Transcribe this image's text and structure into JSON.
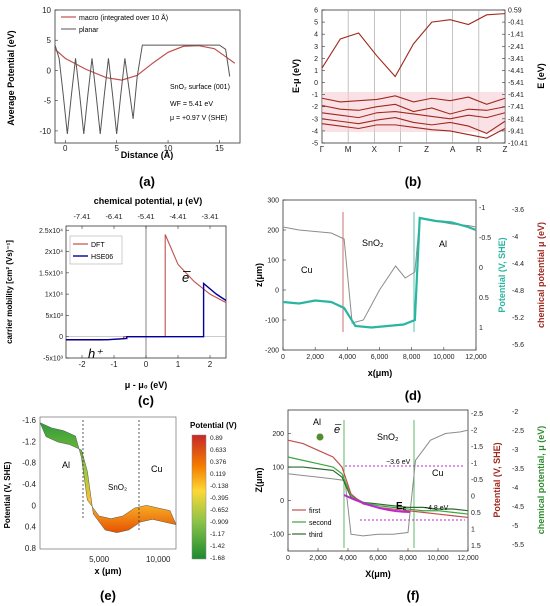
{
  "panels": [
    {
      "id": "a",
      "label": "(a)"
    },
    {
      "id": "b",
      "label": "(b)"
    },
    {
      "id": "c",
      "label": "(c)"
    },
    {
      "id": "d",
      "label": "(d)"
    },
    {
      "id": "e",
      "label": "(e)"
    },
    {
      "id": "f",
      "label": "(f)"
    }
  ],
  "chart_data": [
    {
      "panel": "a",
      "type": "line",
      "xlabel": "Distance (Å)",
      "ylabel": "Average Potential (eV)",
      "xlim": [
        -1,
        17
      ],
      "ylim": [
        -12,
        10
      ],
      "x_ticks": [
        0,
        5,
        10,
        15
      ],
      "y_ticks": [
        -10,
        -5,
        0,
        5,
        10
      ],
      "legend": [
        "macro (integrated over 10 Å)",
        "planar"
      ],
      "legend_position": "top-left",
      "annotations": [
        "SnO₂ surface (001)",
        "WF = 5.41 eV",
        "μ = +0.97 V (SHE)"
      ],
      "series": [
        {
          "name": "macro (integrated over 10 Å)",
          "color": "#c0504d",
          "x": [
            -1,
            0,
            2,
            4,
            5.5,
            7,
            8.5,
            10,
            11.5,
            13,
            14.5,
            15.5,
            16.5
          ],
          "y": [
            3.5,
            2.0,
            0.2,
            -1.2,
            -1.6,
            -0.8,
            1.2,
            3.0,
            4.0,
            4.1,
            3.6,
            2.4,
            1.2
          ]
        },
        {
          "name": "planar",
          "color": "#555555",
          "x": [
            -1,
            -0.6,
            -0.2,
            0.2,
            0.6,
            1,
            1.4,
            1.8,
            2.2,
            2.6,
            3,
            3.4,
            3.8,
            4.2,
            4.6,
            5,
            5.4,
            5.8,
            6.2,
            6.6,
            7,
            7.5,
            8,
            9,
            10,
            11,
            12,
            13,
            14,
            15,
            15.6,
            16
          ],
          "y": [
            4.2,
            2,
            -4,
            -10.5,
            -4,
            2,
            -4,
            -10.5,
            -4,
            2,
            -4,
            -10.5,
            -4,
            2,
            -4,
            -10.5,
            -4,
            2,
            -3,
            -8,
            -1,
            4.2,
            4.2,
            4.2,
            4.2,
            4.2,
            4.2,
            4.2,
            4.2,
            4.2,
            3.5,
            -1
          ]
        }
      ]
    },
    {
      "panel": "b",
      "type": "line",
      "ylabel": "E-μ (eV)",
      "ylabel_right": "E (eV)",
      "ylim": [
        -5,
        6
      ],
      "x_ticks": [
        "Γ",
        "M",
        "X",
        "Γ",
        "Z",
        "A",
        "R",
        "Z"
      ],
      "y_ticks_left": [
        -5,
        -4,
        -3,
        -2,
        -1,
        0,
        1,
        2,
        3,
        4,
        5,
        6
      ],
      "y_ticks_right": [
        0.59,
        -0.41,
        -1.41,
        -2.41,
        -3.41,
        -4.41,
        -5.41,
        -6.41,
        -7.41,
        -8.41,
        -9.41,
        -10.41
      ],
      "series": [
        {
          "name": "conduction",
          "color": "#a0281e",
          "y": [
            1.2,
            3.6,
            4.1,
            2.2,
            0.5,
            3.2,
            5.0,
            5.2,
            4.8,
            5.6,
            5.7
          ]
        },
        {
          "name": "valence 1",
          "color": "#a0281e",
          "y": [
            -1.3,
            -1.6,
            -1.5,
            -1.4,
            -1.1,
            -1.6,
            -1.3,
            -1.5,
            -1.2,
            -1.8,
            -1.3
          ]
        },
        {
          "name": "valence 2",
          "color": "#a0281e",
          "y": [
            -1.9,
            -2.2,
            -2.3,
            -2.0,
            -1.8,
            -2.4,
            -2.1,
            -2.6,
            -2.2,
            -2.3,
            -2.0
          ]
        },
        {
          "name": "valence 3",
          "color": "#a0281e",
          "y": [
            -2.5,
            -2.7,
            -2.9,
            -2.5,
            -2.4,
            -2.6,
            -2.8,
            -3.0,
            -2.7,
            -2.9,
            -2.5
          ]
        },
        {
          "name": "valence 4",
          "color": "#a0281e",
          "y": [
            -3.0,
            -3.2,
            -3.4,
            -3.1,
            -2.9,
            -3.3,
            -3.5,
            -3.3,
            -3.6,
            -4.2,
            -3.2
          ]
        },
        {
          "name": "valence 5",
          "color": "#a0281e",
          "y": [
            -3.4,
            -3.6,
            -3.8,
            -3.5,
            -3.5,
            -3.7,
            -3.9,
            -4.0,
            -4.3,
            -4.6,
            -3.8
          ]
        }
      ]
    },
    {
      "panel": "c",
      "type": "line",
      "title": "chemical potential, μ (eV)",
      "xlabel": "μ - μ₀ (eV)",
      "ylabel": "carrier mobility [cm² (Vs)⁻¹]",
      "xlim": [
        -2.5,
        2.5
      ],
      "ylim": [
        -5000,
        26000
      ],
      "x_ticks": [
        -2,
        -1,
        0,
        1,
        2
      ],
      "x_ticks_top": [
        -7.41,
        -6.41,
        -5.41,
        -4.41,
        -3.41
      ],
      "y_ticks": [
        "-5x10³",
        "0",
        "5x10³",
        "1x10⁴",
        "1.5x10⁴",
        "2x10⁴",
        "2.5x10⁴"
      ],
      "legend": [
        "DFT",
        "HSE06"
      ],
      "annotations": [
        "e̅",
        "h⁺"
      ],
      "series": [
        {
          "name": "DFT",
          "color": "#c0504d",
          "x": [
            -2.5,
            -1.4,
            -0.7,
            -0.7,
            0.6,
            0.6,
            1.0,
            1.5,
            2.0,
            2.5
          ],
          "y": [
            -800,
            -800,
            -500,
            0,
            0,
            24000,
            17000,
            13000,
            10000,
            8000
          ]
        },
        {
          "name": "HSE06",
          "color": "#0000a0",
          "x": [
            -2.5,
            -1.2,
            -0.6,
            -0.6,
            1.8,
            1.8,
            2.2,
            2.5
          ],
          "y": [
            -700,
            -700,
            -400,
            0,
            0,
            12500,
            10000,
            8500
          ]
        }
      ]
    },
    {
      "panel": "d",
      "type": "line",
      "xlabel": "x(μm)",
      "ylabel": "z(μm)",
      "ylabel_right1": "Potential (V, SHE)",
      "ylabel_right2": "chemical potential μ (eV)",
      "xlim": [
        0,
        12000
      ],
      "ylim": [
        -200,
        300
      ],
      "x_ticks": [
        "0",
        "2,000",
        "4,000",
        "6,000",
        "8,000",
        "10,000",
        "12,000"
      ],
      "y_ticks": [
        -200,
        -100,
        0,
        100,
        200,
        300
      ],
      "y_ticks_right1": [
        -1,
        -0.5,
        0,
        0.5,
        1
      ],
      "y_ticks_right2": [
        -3.6,
        -4,
        -4.4,
        -4.8,
        -5.2,
        -5.6
      ],
      "region_labels": [
        "Cu",
        "SnO₂",
        "Al"
      ],
      "series": [
        {
          "name": "potential",
          "color": "#2ab5a0",
          "x": [
            0,
            1000,
            2000,
            3000,
            3800,
            4500,
            5500,
            6500,
            7500,
            8200,
            8500,
            9500,
            10500,
            11500,
            12000
          ],
          "y": [
            -40,
            -45,
            -35,
            -40,
            -60,
            -120,
            -125,
            -120,
            -115,
            -100,
            240,
            230,
            225,
            210,
            200
          ]
        },
        {
          "name": "topography",
          "color": "#8c8c8c",
          "x": [
            0,
            1000,
            2000,
            3000,
            3800,
            4300,
            5000,
            6000,
            7000,
            7600,
            8200,
            8500,
            9500,
            10500,
            11500,
            12000
          ],
          "y": [
            210,
            200,
            195,
            190,
            170,
            -110,
            -100,
            0,
            80,
            40,
            60,
            240,
            230,
            220,
            215,
            210
          ]
        }
      ]
    },
    {
      "panel": "e",
      "type": "area",
      "xlabel": "x (μm)",
      "ylabel": "Potential (V, SHE)",
      "colorbar_title": "Potential (V)",
      "x_ticks": [
        "5,000",
        "10,000"
      ],
      "y_ticks": [
        -1.6,
        -1.2,
        -0.8,
        -0.4,
        0,
        0.4,
        0.8
      ],
      "colorbar_ticks": [
        0.89,
        0.633,
        0.376,
        0.119,
        -0.138,
        -0.395,
        -0.652,
        -0.909,
        -1.17,
        -1.42,
        -1.68
      ],
      "region_labels": [
        "Al",
        "SnO₂",
        "Cu"
      ],
      "x": [
        0,
        1000,
        2000,
        3000,
        3500,
        4000,
        5000,
        6000,
        7000,
        8000,
        9000,
        10000,
        11000
      ],
      "y": [
        -1.55,
        -1.45,
        -1.4,
        -1.3,
        -0.9,
        -0.1,
        0.2,
        0.25,
        0.2,
        0.05,
        0.0,
        0.05,
        0.1
      ]
    },
    {
      "panel": "f",
      "type": "line",
      "xlabel": "X(μm)",
      "ylabel": "Z(μm)",
      "ylabel_right1": "Potential (V, SHE)",
      "ylabel_right2": "chemical potential, μ (eV)",
      "xlim": [
        0,
        12000
      ],
      "ylim": [
        -150,
        270
      ],
      "x_ticks": [
        "0",
        "2,000",
        "4,000",
        "6,000",
        "8,000",
        "10,000",
        "12,000"
      ],
      "y_ticks": [
        -100,
        0,
        100,
        200
      ],
      "y_ticks_right1": [
        -2.5,
        -2,
        -1.5,
        -1,
        -0.5,
        0,
        0.5,
        1,
        1.5
      ],
      "y_ticks_right2": [
        -2,
        -2.5,
        -3,
        -3.5,
        -4,
        -4.5,
        -5,
        -5.5
      ],
      "legend": [
        "first",
        "second",
        "third"
      ],
      "annotations": [
        "e̅",
        "−3.6 eV",
        "E꜀",
        "−4.8 eV"
      ],
      "region_labels": [
        "Al",
        "SnO₂",
        "Cu"
      ],
      "series": [
        {
          "name": "first",
          "color": "#c0504d",
          "x": [
            0,
            1000,
            2000,
            3000,
            3600,
            4200,
            5000,
            6000,
            7000,
            8000,
            9000,
            10000,
            11000,
            12000
          ],
          "y": [
            180,
            170,
            150,
            130,
            100,
            20,
            -10,
            -20,
            -25,
            -30,
            -35,
            -40,
            -45,
            -50
          ]
        },
        {
          "name": "second",
          "color": "#3aa640",
          "x": [
            0,
            1000,
            2000,
            3000,
            3600,
            4200,
            5000,
            6000,
            7000,
            8000,
            9000,
            10000,
            11000,
            12000
          ],
          "y": [
            130,
            120,
            110,
            100,
            80,
            15,
            -5,
            -15,
            -20,
            -25,
            -30,
            -30,
            -35,
            -40
          ]
        },
        {
          "name": "third",
          "color": "#2e6b2e",
          "x": [
            0,
            1000,
            2000,
            3000,
            3600,
            4200,
            5000,
            6000,
            7000,
            8000,
            9000,
            10000,
            11000,
            12000
          ],
          "y": [
            100,
            100,
            95,
            90,
            70,
            10,
            -5,
            -10,
            -15,
            -20,
            -20,
            -25,
            -25,
            -30
          ]
        },
        {
          "name": "topography",
          "color": "#8c8c8c",
          "x": [
            0,
            1000,
            2000,
            3000,
            3800,
            4200,
            5000,
            6000,
            7000,
            8000,
            8500,
            9500,
            10500,
            11500,
            12000
          ],
          "y": [
            80,
            75,
            70,
            65,
            60,
            -100,
            -105,
            -100,
            -100,
            -95,
            120,
            180,
            200,
            205,
            210
          ]
        }
      ]
    }
  ]
}
